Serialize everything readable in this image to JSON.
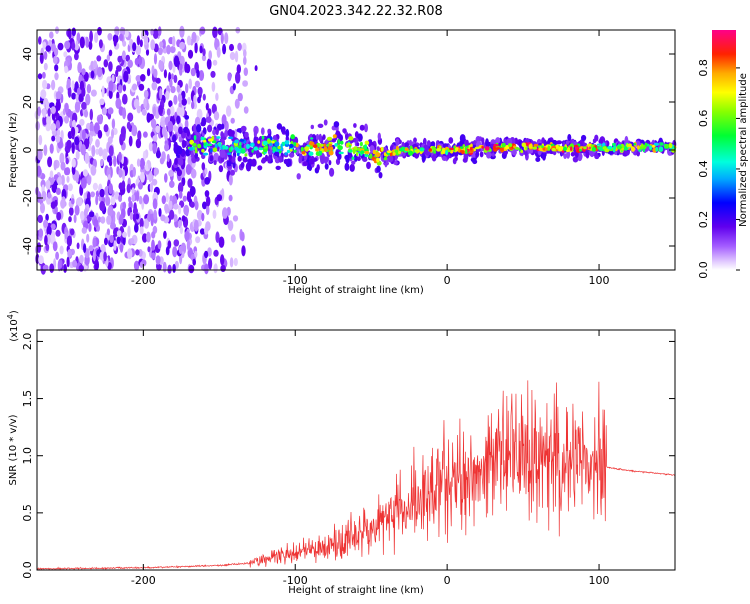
{
  "title": "GN04.2023.342.22.32.R08",
  "chart_data": [
    {
      "type": "heatmap",
      "xlabel": "Height of straight line (km)",
      "ylabel": "Frequency (Hz)",
      "xlim": [
        -270,
        150
      ],
      "ylim": [
        -50,
        50
      ],
      "xticks": [
        -200,
        -100,
        0,
        100
      ],
      "yticks": [
        -40,
        -20,
        0,
        20,
        40
      ],
      "colorbar": {
        "label": "Normalized spectral amplitude",
        "range": [
          0,
          0.95
        ],
        "ticks": [
          0.0,
          0.2,
          0.4,
          0.6,
          0.8
        ]
      },
      "ridge_frequency": [
        {
          "x": -180,
          "y": 2
        },
        {
          "x": -100,
          "y": 1
        },
        {
          "x": -70,
          "y": 2
        },
        {
          "x": -45,
          "y": -3
        },
        {
          "x": -30,
          "y": 0
        },
        {
          "x": 0,
          "y": 0
        },
        {
          "x": 50,
          "y": 1
        },
        {
          "x": 100,
          "y": 1
        },
        {
          "x": 150,
          "y": 1
        }
      ],
      "grid": false
    },
    {
      "type": "line",
      "xlabel": "Height of straight line (km)",
      "ylabel": "SNR (10 * v/v)",
      "y_multiplier_label": "(x10",
      "y_multiplier_exp": "4",
      "y_multiplier_close": ")",
      "xlim": [
        -270,
        150
      ],
      "ylim": [
        0,
        2.1
      ],
      "xticks": [
        -200,
        -100,
        0,
        100
      ],
      "yticks": [
        0.0,
        0.5,
        1.0,
        1.5,
        2.0
      ],
      "color": "#ee3333",
      "series": [
        {
          "x": [
            -270,
            -200,
            -150,
            -130,
            -120,
            -100,
            -80,
            -60,
            -40,
            -20,
            0,
            20,
            40,
            60,
            80,
            100,
            105,
            120,
            150
          ],
          "y": [
            0.01,
            0.02,
            0.04,
            0.06,
            0.1,
            0.15,
            0.2,
            0.3,
            0.45,
            0.6,
            0.75,
            0.85,
            1.0,
            1.0,
            1.0,
            0.95,
            0.9,
            0.87,
            0.83
          ]
        }
      ],
      "grid": false
    }
  ]
}
